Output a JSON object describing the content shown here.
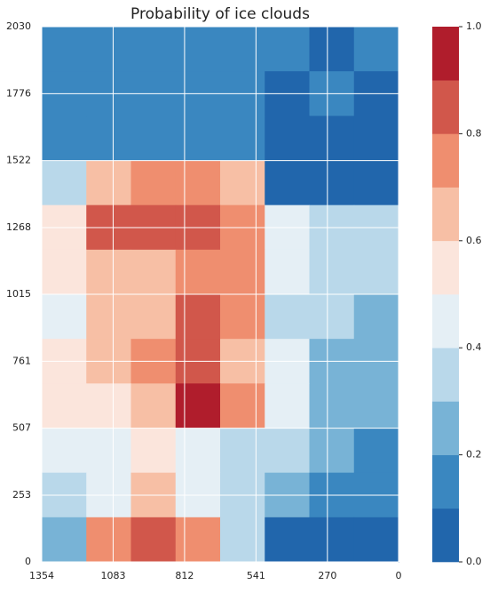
{
  "chart_data": {
    "type": "heatmap",
    "title": "Probability of ice clouds",
    "xlim": [
      1354,
      0
    ],
    "ylim": [
      0,
      2030
    ],
    "xticks": [
      1354,
      1083,
      812,
      541,
      270,
      0
    ],
    "yticks": [
      0,
      253,
      507,
      761,
      1015,
      1268,
      1522,
      1776,
      2030
    ],
    "grid": true,
    "levels": [
      0,
      0.1,
      0.2,
      0.3,
      0.4,
      0.5,
      0.6,
      0.7,
      0.8,
      0.9,
      1
    ],
    "colors": [
      "#2166ac",
      "#3a87c0",
      "#78b3d6",
      "#b9d8ea",
      "#e5eff5",
      "#fbe5dc",
      "#f7bfa5",
      "#ef8e6f",
      "#d1574b",
      "#b01d2c"
    ],
    "cticks": [
      {
        "value": 0,
        "label": "0.0"
      },
      0.2,
      0.4,
      0.6,
      0.8,
      {
        "value": 1,
        "label": "1.0"
      }
    ],
    "z": [
      [
        0.15,
        0.1,
        0.15,
        0.1,
        0.15,
        0.1,
        0.05,
        0.1
      ],
      [
        0.15,
        0.15,
        0.1,
        0.15,
        0.1,
        0.05,
        0.1,
        0.05
      ],
      [
        0.1,
        0.15,
        0.1,
        0.15,
        0.1,
        0.05,
        0.05,
        0.05
      ],
      [
        0.3,
        0.65,
        0.75,
        0.75,
        0.65,
        0.05,
        0.05,
        0.05
      ],
      [
        0.55,
        0.8,
        0.85,
        0.8,
        0.7,
        0.4,
        0.3,
        0.3
      ],
      [
        0.5,
        0.6,
        0.65,
        0.7,
        0.75,
        0.4,
        0.35,
        0.3
      ],
      [
        0.45,
        0.6,
        0.65,
        0.8,
        0.7,
        0.35,
        0.3,
        0.2
      ],
      [
        0.55,
        0.6,
        0.7,
        0.85,
        0.6,
        0.4,
        0.25,
        0.2
      ],
      [
        0.5,
        0.55,
        0.65,
        0.9,
        0.75,
        0.4,
        0.2,
        0.2
      ],
      [
        0.45,
        0.4,
        0.5,
        0.45,
        0.35,
        0.3,
        0.2,
        0.15
      ],
      [
        0.3,
        0.4,
        0.6,
        0.45,
        0.3,
        0.2,
        0.15,
        0.1
      ],
      [
        0.2,
        0.75,
        0.8,
        0.7,
        0.3,
        0.05,
        0.05,
        0.05
      ]
    ]
  }
}
